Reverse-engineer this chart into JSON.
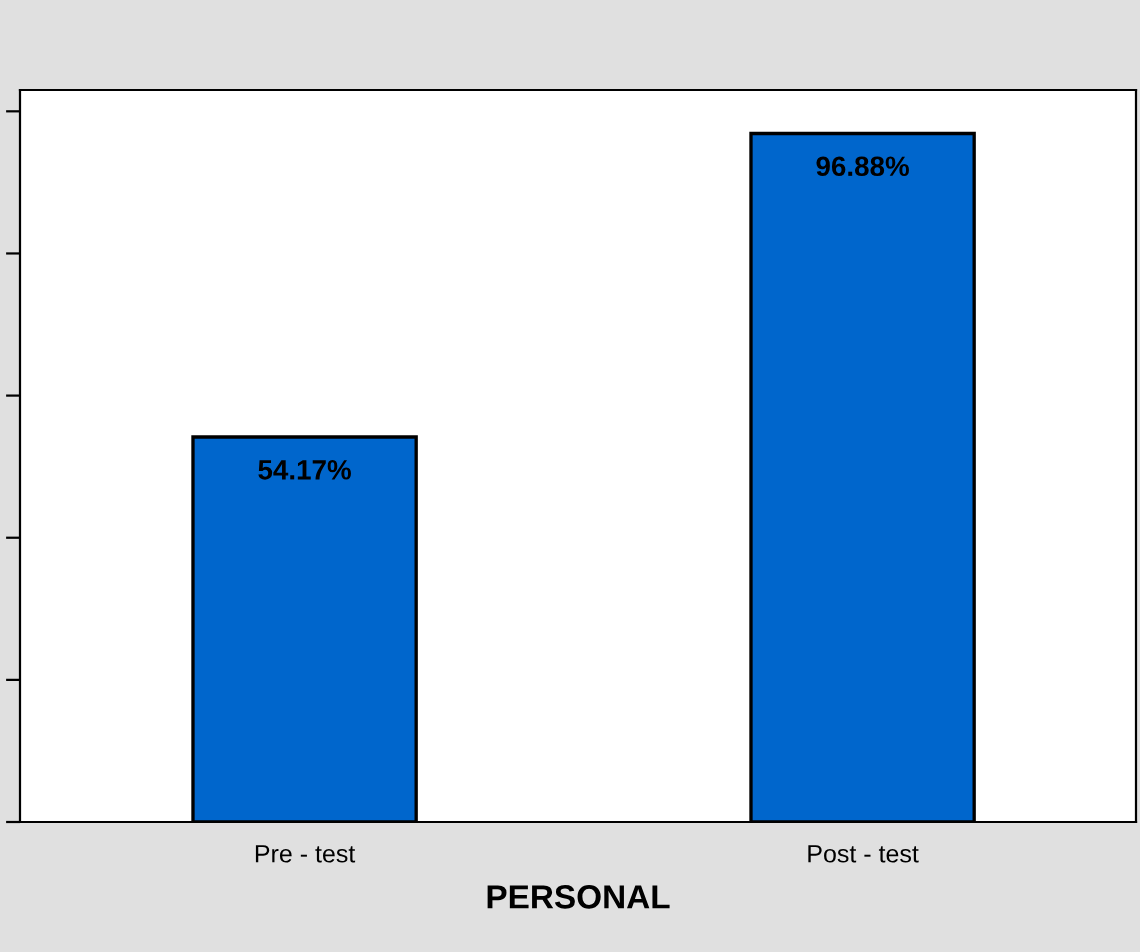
{
  "chart_data": {
    "type": "bar",
    "xlabel": "PERSONAL",
    "categories": [
      "Pre - test",
      "Post - test"
    ],
    "values": [
      54.17,
      96.88
    ],
    "color": "#0066cc",
    "value_labels": [
      "54.17%",
      "96.88%"
    ],
    "ylim": [
      0,
      103
    ],
    "yticks": [
      {
        "value": 0,
        "label": null
      },
      {
        "value": 20,
        "label": null
      },
      {
        "value": 40,
        "label": null
      },
      {
        "value": 60,
        "label": null
      },
      {
        "value": 80,
        "label": null
      },
      {
        "value": 100,
        "label": null
      }
    ],
    "tick_labels": "x",
    "grid": false,
    "legend": false
  }
}
